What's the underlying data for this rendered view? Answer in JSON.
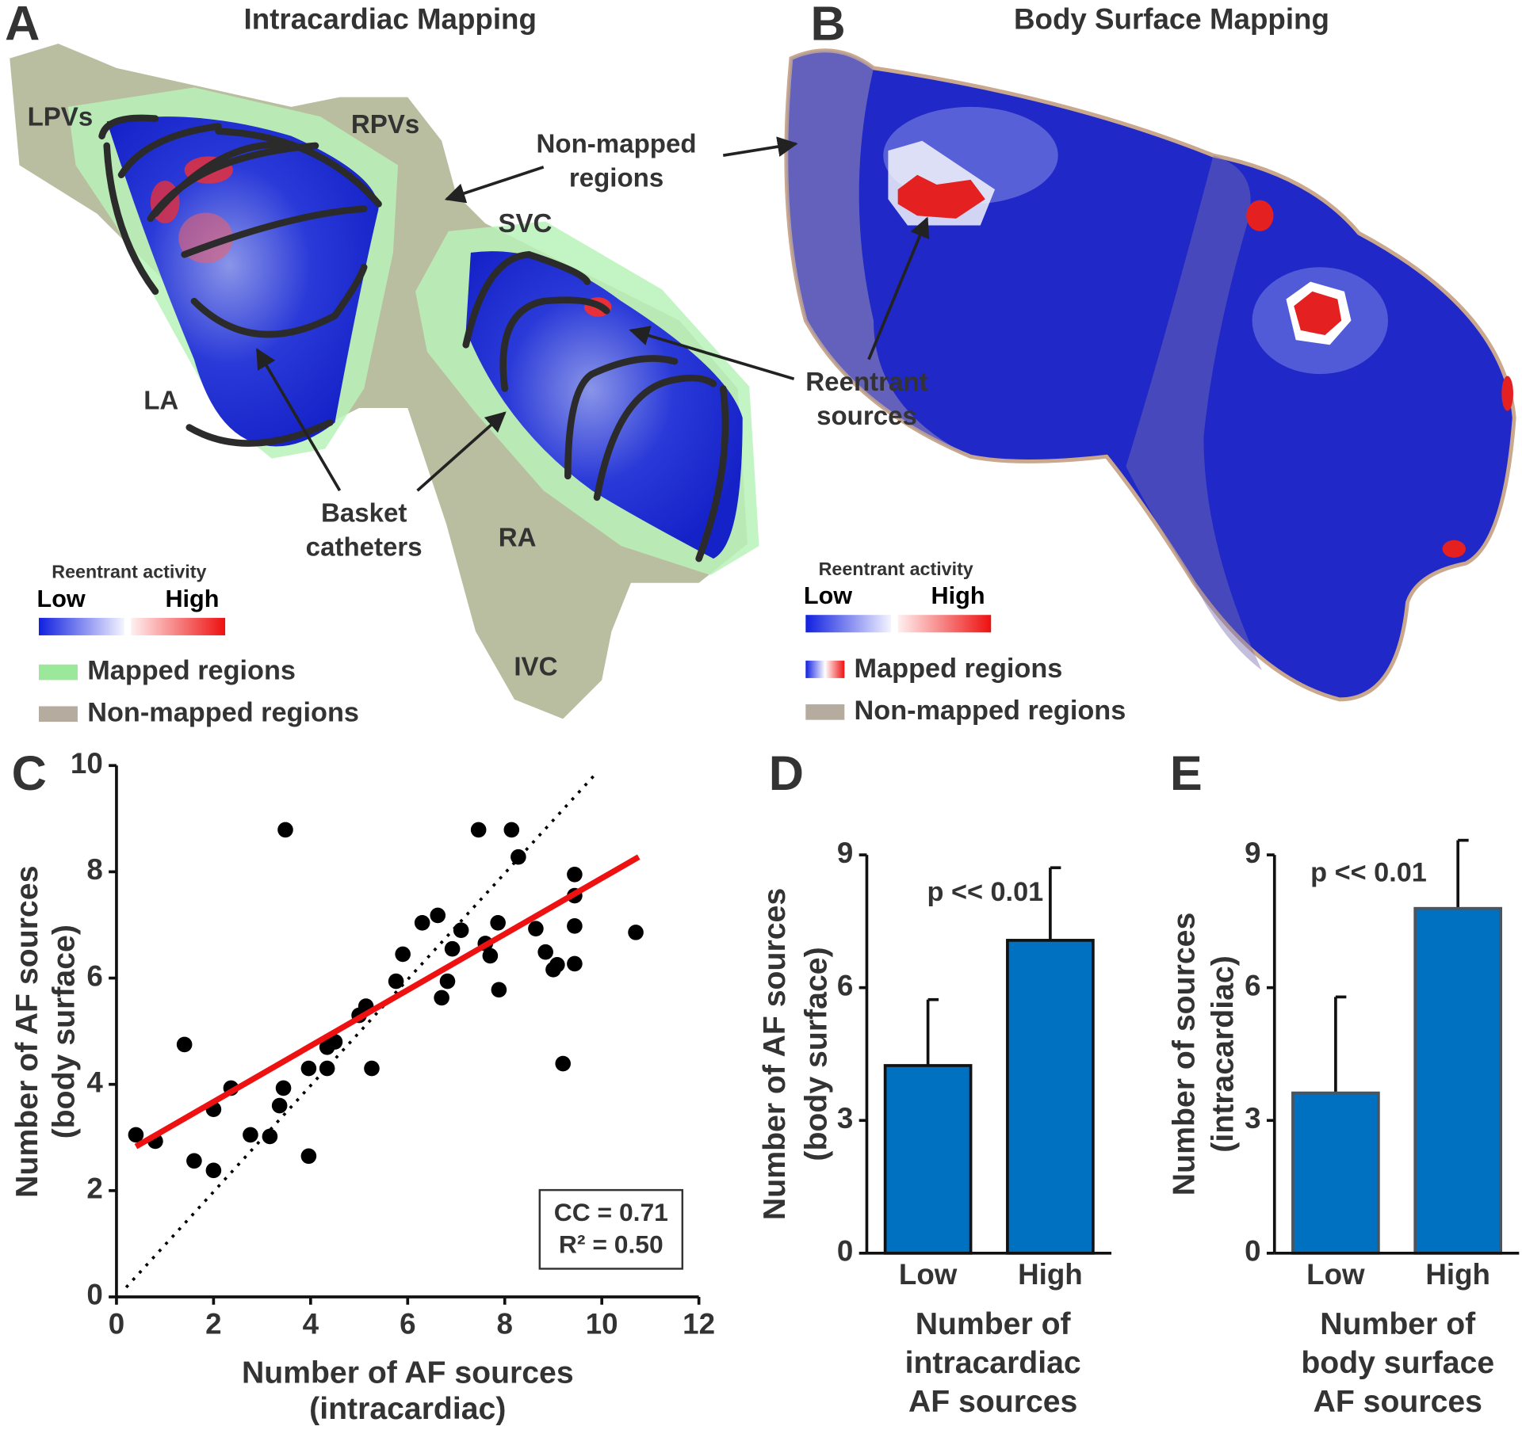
{
  "figure": {
    "panel_a": {
      "label": "A",
      "title": "Intracardiac Mapping",
      "regions": [
        "LPVs",
        "RPVs",
        "SVC",
        "LA",
        "RA",
        "IVC"
      ],
      "basket_callout": [
        "Basket",
        "catheters"
      ],
      "legend": {
        "title": "Reentrant activity",
        "low": "Low",
        "high": "High",
        "items": [
          "Mapped regions",
          "Non-mapped regions"
        ]
      }
    },
    "panel_b": {
      "label": "B",
      "title": "Body Surface Mapping",
      "legend": {
        "title": "Reentrant activity",
        "low": "Low",
        "high": "High",
        "items": [
          "Mapped regions",
          "Non-mapped regions"
        ]
      }
    },
    "shared_callouts": {
      "non_mapped": [
        "Non-mapped",
        "regions"
      ],
      "reentrant": [
        "Reentrant",
        "sources"
      ]
    }
  },
  "chart_data": [
    {
      "type": "scatter",
      "panel_label": "C",
      "xlabel": [
        "Number of AF sources",
        "(intracardiac)"
      ],
      "ylabel": [
        "Number of AF sources",
        "(body surface)"
      ],
      "x": [
        0.4,
        0.8,
        1.4,
        1.6,
        2.0,
        2.0,
        2.36,
        2.76,
        3.16,
        3.36,
        3.44,
        3.48,
        3.96,
        3.96,
        4.34,
        4.34,
        4.5,
        5.0,
        5.14,
        5.26,
        5.76,
        5.9,
        6.3,
        6.62,
        6.7,
        6.82,
        6.92,
        7.1,
        7.46,
        7.6,
        7.7,
        7.86,
        7.88,
        8.14,
        8.28,
        8.64,
        8.84,
        9.0,
        9.08,
        9.2,
        9.44,
        9.44,
        9.44,
        9.44,
        10.7
      ],
      "values": [
        3.05,
        2.93,
        4.75,
        2.56,
        3.53,
        2.38,
        3.93,
        3.05,
        3.02,
        3.6,
        3.93,
        8.79,
        2.65,
        4.3,
        4.3,
        4.7,
        4.8,
        5.3,
        5.47,
        4.3,
        5.94,
        6.45,
        7.04,
        7.18,
        5.63,
        5.94,
        6.55,
        6.9,
        8.79,
        6.65,
        6.42,
        7.04,
        5.78,
        8.79,
        8.28,
        6.93,
        6.49,
        6.16,
        6.25,
        4.39,
        7.95,
        7.55,
        6.98,
        6.27,
        6.86
      ],
      "color": "#000000",
      "fit_line": {
        "x": [
          0.4,
          10.76
        ],
        "y": [
          2.83,
          8.28
        ],
        "color": "#ee1111"
      },
      "reference_line": {
        "x": [
          0.2,
          9.9
        ],
        "y": [
          0.18,
          9.87
        ],
        "color": "#000000"
      },
      "annotations": [
        "CC = 0.71",
        "R² = 0.50"
      ],
      "xlim": [
        0,
        12
      ],
      "xticks": [
        0,
        2,
        4,
        6,
        8,
        10,
        12
      ],
      "ylim": [
        0,
        10
      ],
      "yticks": [
        0,
        2,
        4,
        6,
        8,
        10
      ]
    },
    {
      "type": "bar",
      "panel_label": "D",
      "xlabel": [
        "Number of",
        "intracardiac",
        "AF sources"
      ],
      "ylabel": [
        "Number of AF sources",
        "(body surface)"
      ],
      "categories": [
        "Low",
        "High"
      ],
      "values": [
        4.24,
        7.07
      ],
      "errors": [
        1.49,
        1.64
      ],
      "color": "#0070c0",
      "edge_color": "#111111",
      "annotation": "p << 0.01",
      "ylim": [
        0,
        9
      ],
      "yticks": [
        0,
        3,
        6,
        9
      ]
    },
    {
      "type": "bar",
      "panel_label": "E",
      "xlabel": [
        "Number of",
        "body surface",
        "AF sources"
      ],
      "ylabel": [
        "Number of sources",
        "(intracardiac)"
      ],
      "categories": [
        "Low",
        "High"
      ],
      "values": [
        3.62,
        7.79
      ],
      "errors": [
        2.17,
        1.54
      ],
      "color": "#0070c0",
      "edge_color": "#4a5560",
      "annotation": "p << 0.01",
      "ylim": [
        0,
        9
      ],
      "yticks": [
        0,
        3,
        6,
        9
      ]
    }
  ]
}
